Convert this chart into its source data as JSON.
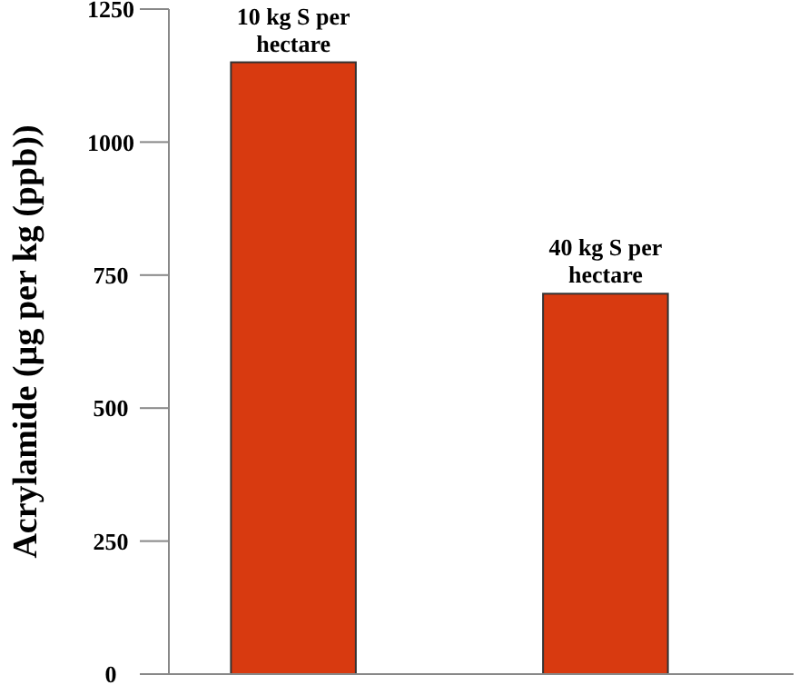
{
  "chart_data": {
    "type": "bar",
    "ylabel": "Acrylamide (µg per kg (ppb))",
    "categories": [
      "10 kg S per hectare",
      "40 kg S per hectare"
    ],
    "values": [
      1150,
      715
    ],
    "color": "#d83a10",
    "ylim": [
      0,
      1250
    ],
    "yticks": [
      0,
      250,
      500,
      750,
      1000,
      1250
    ],
    "grid": false
  }
}
